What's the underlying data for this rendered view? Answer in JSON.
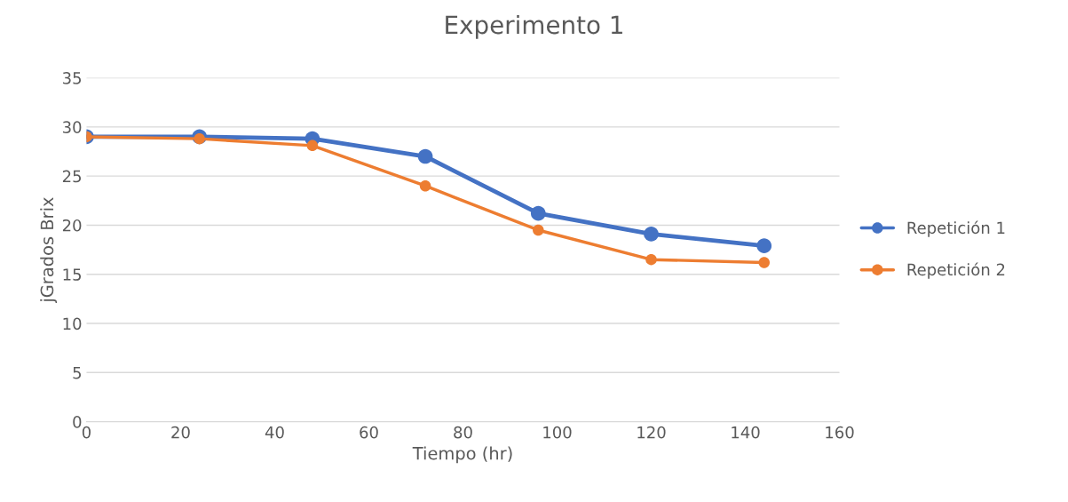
{
  "chart_data": {
    "type": "line",
    "title": "Experimento 1",
    "xlabel": "Tiempo (hr)",
    "ylabel": "jGrados Brix",
    "x": [
      0,
      24,
      48,
      72,
      96,
      120,
      144
    ],
    "series": [
      {
        "name": "Repetición 1",
        "color": "#4472c4",
        "values": [
          29.0,
          29.0,
          28.8,
          27.0,
          21.2,
          19.1,
          17.9
        ]
      },
      {
        "name": "Repetición 2",
        "color": "#ed7d31",
        "values": [
          29.0,
          28.8,
          28.1,
          24.0,
          19.5,
          16.5,
          16.2
        ]
      }
    ],
    "xlim": [
      0,
      160
    ],
    "xticks": [
      0,
      20,
      40,
      60,
      80,
      100,
      120,
      140,
      160
    ],
    "ylim": [
      0,
      35
    ],
    "yticks": [
      0,
      5,
      10,
      15,
      20,
      25,
      30,
      35
    ],
    "grid": "y",
    "legend": "right",
    "marker": "circle",
    "line_style": "solid"
  }
}
